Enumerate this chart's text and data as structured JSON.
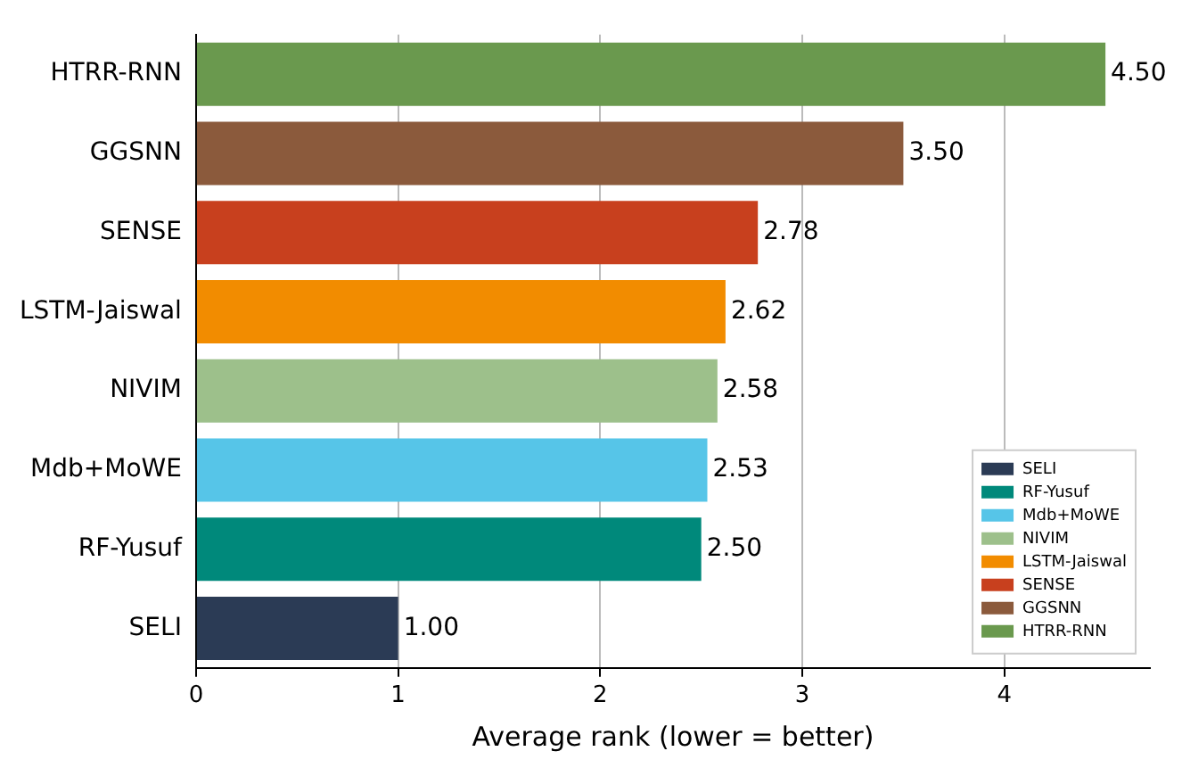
{
  "chart_data": {
    "type": "bar",
    "orientation": "horizontal",
    "xlabel": "Average rank (lower = better)",
    "categories": [
      "HTRR-RNN",
      "GGSNN",
      "SENSE",
      "LSTM-Jaiswal",
      "NIVIM",
      "Mdb+MoWE",
      "RF-Yusuf",
      "SELI"
    ],
    "series": [
      {
        "name": "HTRR-RNN",
        "color": "#6a994e",
        "values": [
          4.5,
          null,
          null,
          null,
          null,
          null,
          null,
          null
        ],
        "value_labels": [
          "4.50",
          null,
          null,
          null,
          null,
          null,
          null,
          null
        ]
      },
      {
        "name": "GGSNN",
        "color": "#8b5a3c",
        "values": [
          null,
          3.5,
          null,
          null,
          null,
          null,
          null,
          null
        ],
        "value_labels": [
          null,
          "3.50",
          null,
          null,
          null,
          null,
          null,
          null
        ]
      },
      {
        "name": "SENSE",
        "color": "#c8401e",
        "values": [
          null,
          null,
          2.78,
          null,
          null,
          null,
          null,
          null
        ],
        "value_labels": [
          null,
          null,
          "2.78",
          null,
          null,
          null,
          null,
          null
        ]
      },
      {
        "name": "LSTM-Jaiswal",
        "color": "#f28c00",
        "values": [
          null,
          null,
          null,
          2.62,
          null,
          null,
          null,
          null
        ],
        "value_labels": [
          null,
          null,
          null,
          "2.62",
          null,
          null,
          null,
          null
        ]
      },
      {
        "name": "NIVIM",
        "color": "#9dc08b",
        "values": [
          null,
          null,
          null,
          null,
          2.58,
          null,
          null,
          null
        ],
        "value_labels": [
          null,
          null,
          null,
          null,
          "2.58",
          null,
          null,
          null
        ]
      },
      {
        "name": "Mdb+MoWE",
        "color": "#56c5e8",
        "values": [
          null,
          null,
          null,
          null,
          null,
          2.53,
          null,
          null
        ],
        "value_labels": [
          null,
          null,
          null,
          null,
          null,
          "2.53",
          null,
          null
        ]
      },
      {
        "name": "RF-Yusuf",
        "color": "#00897b",
        "values": [
          null,
          null,
          null,
          null,
          null,
          null,
          2.5,
          null
        ],
        "value_labels": [
          null,
          null,
          null,
          null,
          null,
          null,
          "2.50",
          null
        ]
      },
      {
        "name": "SELI",
        "color": "#2b3b55",
        "values": [
          null,
          null,
          null,
          null,
          null,
          null,
          null,
          1.0
        ],
        "value_labels": [
          null,
          null,
          null,
          null,
          null,
          null,
          null,
          "1.00"
        ]
      }
    ],
    "xlim": [
      0,
      4.72
    ],
    "xticks": [
      0,
      1,
      2,
      3,
      4
    ],
    "grid": "x",
    "legend": "bottom right"
  }
}
